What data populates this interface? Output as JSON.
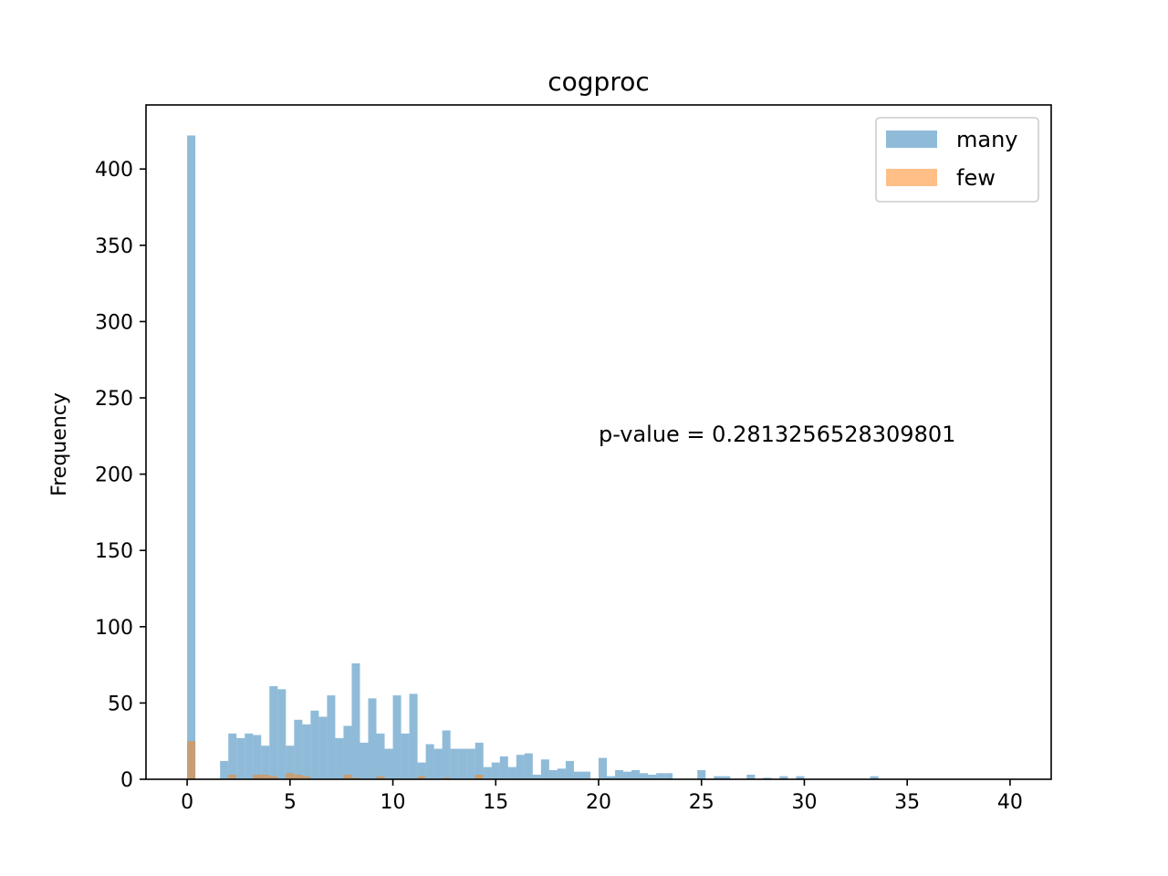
{
  "chart_data": {
    "type": "histogram",
    "title": "cogproc",
    "xlabel": "",
    "ylabel": "Frequency",
    "xlim": [
      -2,
      42
    ],
    "ylim": [
      0,
      442
    ],
    "xticks": [
      0,
      5,
      10,
      15,
      20,
      25,
      30,
      35,
      40
    ],
    "yticks": [
      0,
      50,
      100,
      150,
      200,
      250,
      300,
      350,
      400
    ],
    "bin_width": 0.4,
    "legend": "top-right",
    "annotation": "p-value = 0.2813256528309801",
    "series": [
      {
        "name": "many",
        "color": "#1f77b4",
        "alpha": 0.5,
        "bins": [
          [
            0.0,
            422
          ],
          [
            1.6,
            12
          ],
          [
            2.0,
            30
          ],
          [
            2.4,
            27
          ],
          [
            2.8,
            30
          ],
          [
            3.2,
            29
          ],
          [
            3.6,
            22
          ],
          [
            4.0,
            61
          ],
          [
            4.4,
            59
          ],
          [
            4.8,
            22
          ],
          [
            5.2,
            39
          ],
          [
            5.6,
            36
          ],
          [
            6.0,
            45
          ],
          [
            6.4,
            41
          ],
          [
            6.8,
            55
          ],
          [
            7.2,
            27
          ],
          [
            7.6,
            35
          ],
          [
            8.0,
            76
          ],
          [
            8.4,
            24
          ],
          [
            8.8,
            53
          ],
          [
            9.2,
            30
          ],
          [
            9.6,
            20
          ],
          [
            10.0,
            55
          ],
          [
            10.4,
            30
          ],
          [
            10.8,
            56
          ],
          [
            11.2,
            11
          ],
          [
            11.6,
            23
          ],
          [
            12.0,
            20
          ],
          [
            12.4,
            32
          ],
          [
            12.8,
            20
          ],
          [
            13.2,
            20
          ],
          [
            13.6,
            20
          ],
          [
            14.0,
            24
          ],
          [
            14.4,
            8
          ],
          [
            14.8,
            11
          ],
          [
            15.2,
            15
          ],
          [
            15.6,
            8
          ],
          [
            16.0,
            16
          ],
          [
            16.4,
            17
          ],
          [
            16.8,
            3
          ],
          [
            17.2,
            13
          ],
          [
            17.6,
            6
          ],
          [
            18.0,
            7
          ],
          [
            18.4,
            12
          ],
          [
            18.8,
            5
          ],
          [
            19.2,
            5
          ],
          [
            20.0,
            14
          ],
          [
            20.4,
            2
          ],
          [
            20.8,
            6
          ],
          [
            21.2,
            5
          ],
          [
            21.6,
            6
          ],
          [
            22.0,
            4
          ],
          [
            22.4,
            3
          ],
          [
            22.8,
            4
          ],
          [
            23.2,
            4
          ],
          [
            24.8,
            6
          ],
          [
            25.6,
            2
          ],
          [
            26.0,
            2
          ],
          [
            27.2,
            3
          ],
          [
            28.0,
            1
          ],
          [
            28.8,
            2
          ],
          [
            29.6,
            2
          ],
          [
            33.2,
            2
          ]
        ]
      },
      {
        "name": "few",
        "color": "#ff7f0e",
        "alpha": 0.5,
        "bins": [
          [
            0.0,
            25
          ],
          [
            2.0,
            3
          ],
          [
            3.2,
            3
          ],
          [
            3.6,
            3
          ],
          [
            4.0,
            2
          ],
          [
            4.8,
            4
          ],
          [
            5.2,
            3
          ],
          [
            5.6,
            2
          ],
          [
            7.6,
            3
          ],
          [
            8.0,
            1
          ],
          [
            9.2,
            2
          ],
          [
            11.2,
            2
          ],
          [
            12.4,
            1
          ],
          [
            14.0,
            3
          ]
        ]
      }
    ]
  }
}
